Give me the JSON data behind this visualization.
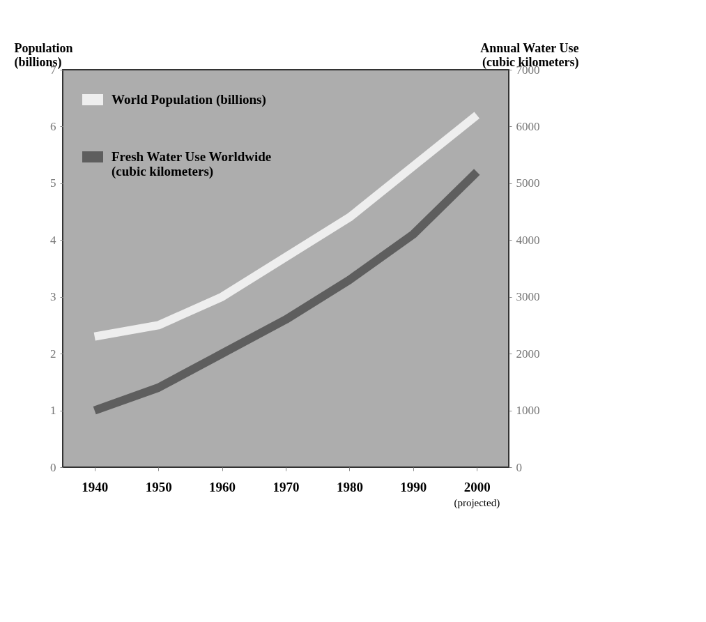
{
  "chart_data": {
    "type": "line",
    "categories": [
      "1940",
      "1950",
      "1960",
      "1970",
      "1980",
      "1990",
      "2000"
    ],
    "series": [
      {
        "name": "World Population (billions)",
        "color": "#eeeeee",
        "values": [
          2.3,
          2.5,
          3.0,
          3.7,
          4.4,
          5.3,
          6.2
        ]
      },
      {
        "name": "Fresh Water Use Worldwide\n(cubic kilometers)",
        "color": "#5e5e5e",
        "axis": "y2",
        "values": [
          1000,
          1400,
          2000,
          2600,
          3300,
          4100,
          5200
        ]
      }
    ],
    "ylabel": "Population\n(billions)",
    "y2label": "Annual Water Use\n(cubic kilometers)",
    "ylim": [
      0,
      7
    ],
    "yticks": [
      0,
      1,
      2,
      3,
      4,
      5,
      6,
      7
    ],
    "y2lim": [
      0,
      7000
    ],
    "y2ticks": [
      0,
      1000,
      2000,
      3000,
      4000,
      5000,
      6000,
      7000
    ],
    "annotations": [
      "(projected)"
    ],
    "legend": "top left",
    "grid": false,
    "marker": "none",
    "line_style": "solid"
  }
}
